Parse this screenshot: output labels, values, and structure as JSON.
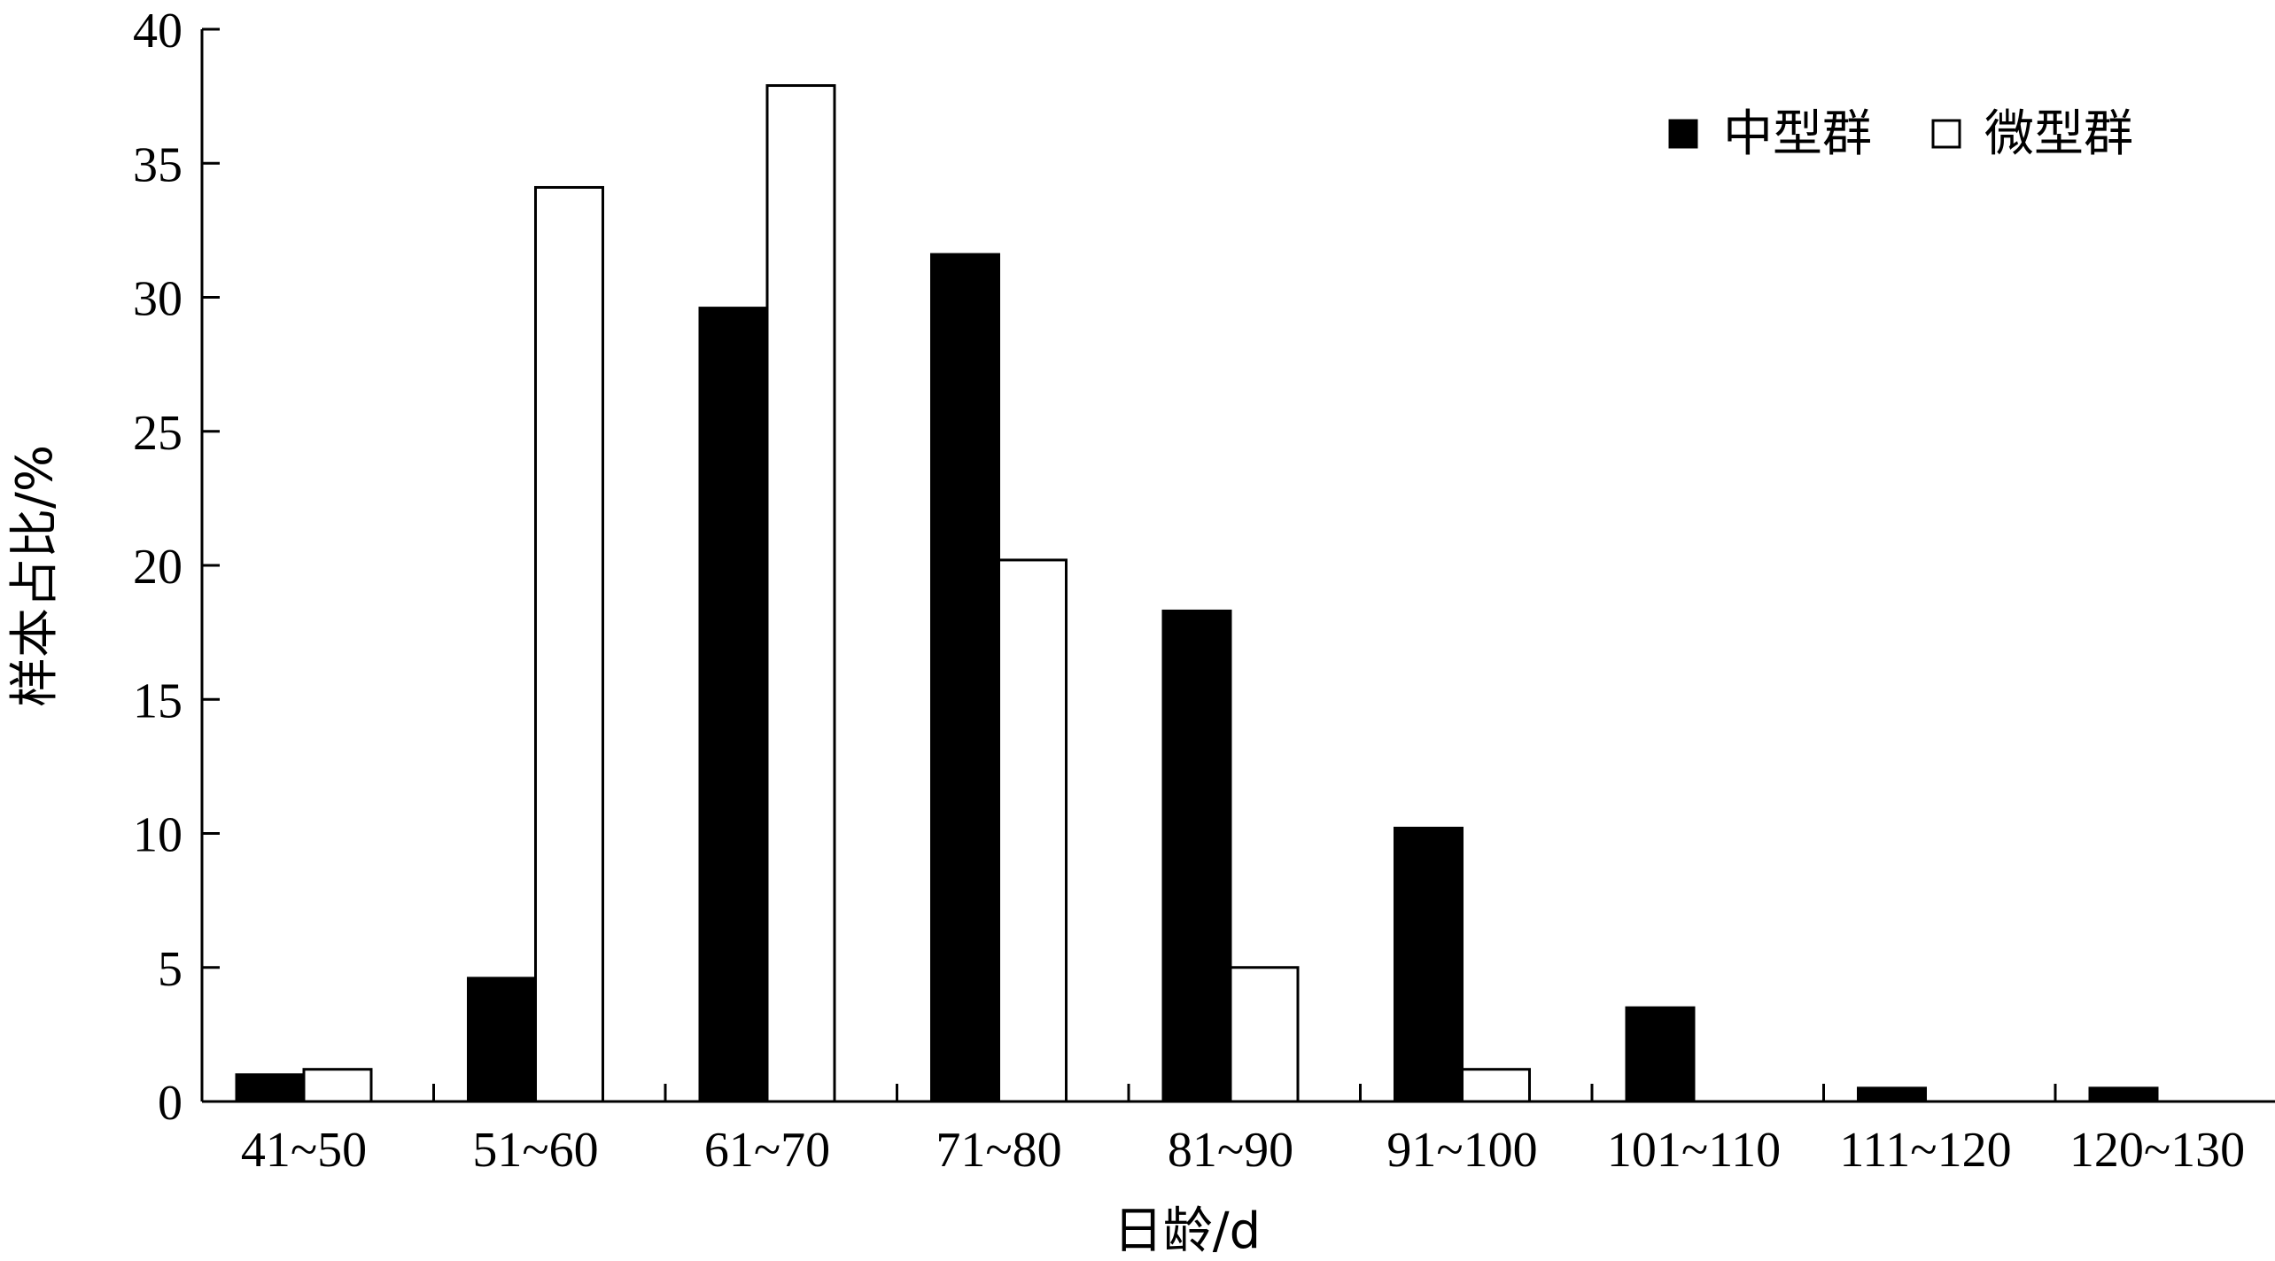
{
  "chart_data": {
    "type": "bar",
    "xlabel": "日龄/d",
    "ylabel": "样本占比/%",
    "ylim": [
      0,
      40
    ],
    "yticks": [
      0,
      5,
      10,
      15,
      20,
      25,
      30,
      35,
      40
    ],
    "categories": [
      "41~50",
      "51~60",
      "61~70",
      "71~80",
      "81~90",
      "91~100",
      "101~110",
      "111~120",
      "120~130"
    ],
    "series": [
      {
        "name": "中型群",
        "fill": "#000000",
        "values": [
          1.0,
          4.6,
          29.6,
          31.6,
          18.3,
          10.2,
          3.5,
          0.5,
          0.5
        ]
      },
      {
        "name": "微型群",
        "fill": "#ffffff",
        "values": [
          1.2,
          34.1,
          37.9,
          20.2,
          5.0,
          1.2,
          0,
          0,
          0
        ]
      }
    ],
    "legend": "top-right",
    "grid": false
  }
}
